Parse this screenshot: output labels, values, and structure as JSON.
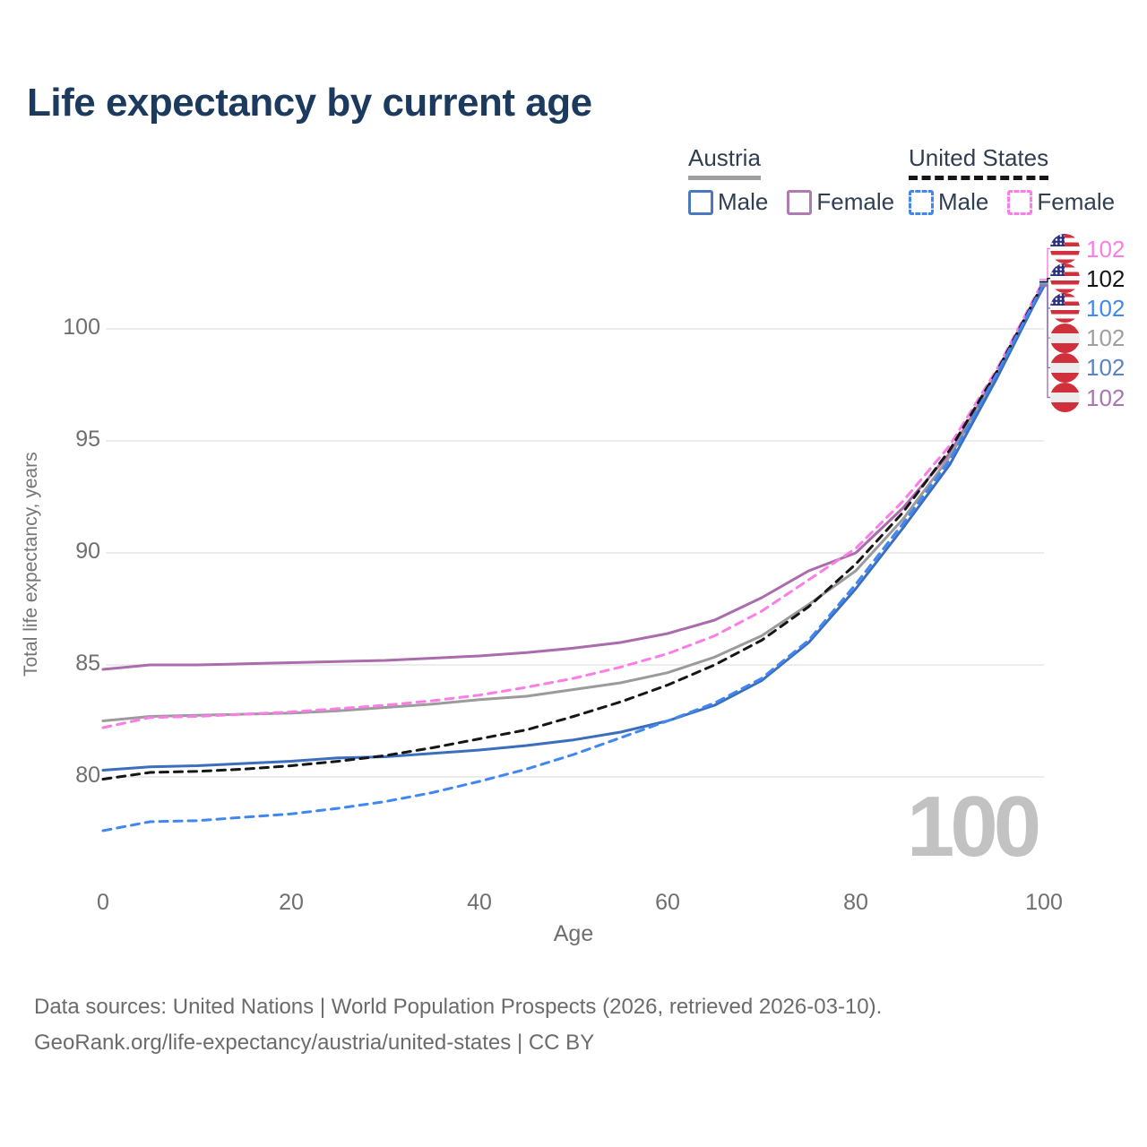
{
  "title": "Life expectancy by current age",
  "colors": {
    "title": "#1b3a5e",
    "legend_text": "#2f3e50",
    "axis_text": "#6f6f6f",
    "grid": "#ececec",
    "watermark": "#c2c2c2",
    "footer": "#6b6b6b"
  },
  "legend": {
    "groups": [
      {
        "label": "Austria",
        "underline_style": "solid",
        "underline_color": "#9e9e9e",
        "items": [
          {
            "label": "Male",
            "color": "#4c79bd",
            "dashed": false
          },
          {
            "label": "Female",
            "color": "#b07ab2",
            "dashed": false
          }
        ]
      },
      {
        "label": "United States",
        "underline_style": "dashed",
        "underline_color": "#161616",
        "items": [
          {
            "label": "Male",
            "color": "#4187f2",
            "dashed": true
          },
          {
            "label": "Female",
            "color": "#fc7ce8",
            "dashed": true
          }
        ]
      }
    ]
  },
  "chart_data": {
    "type": "line",
    "title": "Life expectancy by current age",
    "xlabel": "Age",
    "ylabel": "Total life expectancy, years",
    "x_ticks": [
      0,
      20,
      40,
      60,
      80,
      100
    ],
    "y_ticks": [
      80,
      85,
      90,
      95,
      100
    ],
    "xlim": [
      0,
      100
    ],
    "ylim": [
      77,
      102.5
    ],
    "grid": "horizontal-only",
    "legend_position": "top-right",
    "x": [
      0,
      5,
      10,
      15,
      20,
      25,
      30,
      35,
      40,
      45,
      50,
      55,
      60,
      65,
      70,
      75,
      80,
      85,
      90,
      95,
      100
    ],
    "series": [
      {
        "key": "austria_female",
        "name": "Austria Female",
        "color": "#aa6cac",
        "dashed": false,
        "values": [
          84.8,
          85.0,
          85.0,
          85.05,
          85.1,
          85.15,
          85.2,
          85.3,
          85.4,
          85.55,
          85.75,
          86.0,
          86.4,
          87.0,
          88.0,
          89.2,
          90.0,
          92.0,
          94.45,
          98.0,
          101.9
        ]
      },
      {
        "key": "austria_total",
        "name": "Austria Total",
        "color": "#9b9b9b",
        "dashed": false,
        "values": [
          82.5,
          82.7,
          82.75,
          82.8,
          82.85,
          82.95,
          83.1,
          83.25,
          83.45,
          83.6,
          83.9,
          84.2,
          84.65,
          85.35,
          86.3,
          87.7,
          89.2,
          91.5,
          94.3,
          97.9,
          102.0
        ]
      },
      {
        "key": "austria_male",
        "name": "Austria Male",
        "color": "#3b6fbd",
        "dashed": false,
        "values": [
          80.3,
          80.45,
          80.5,
          80.6,
          80.7,
          80.85,
          80.9,
          81.05,
          81.2,
          81.4,
          81.65,
          82.0,
          82.5,
          83.2,
          84.3,
          86.0,
          88.4,
          91.1,
          93.95,
          97.8,
          101.95
        ]
      },
      {
        "key": "us_female",
        "name": "United States Female",
        "color": "#fb7de5",
        "dashed": true,
        "values": [
          82.2,
          82.65,
          82.7,
          82.8,
          82.9,
          83.05,
          83.2,
          83.4,
          83.65,
          84.0,
          84.4,
          84.9,
          85.5,
          86.3,
          87.4,
          88.8,
          90.2,
          92.3,
          94.8,
          98.2,
          102.2
        ]
      },
      {
        "key": "us_total",
        "name": "United States Total",
        "color": "#161616",
        "dashed": true,
        "values": [
          79.9,
          80.2,
          80.25,
          80.35,
          80.5,
          80.7,
          80.95,
          81.3,
          81.7,
          82.1,
          82.7,
          83.35,
          84.1,
          85.0,
          86.1,
          87.6,
          89.5,
          91.8,
          94.6,
          98.1,
          102.1
        ]
      },
      {
        "key": "us_male",
        "name": "United States Male",
        "color": "#4187f2",
        "dashed": true,
        "values": [
          77.6,
          78.0,
          78.05,
          78.2,
          78.35,
          78.6,
          78.9,
          79.3,
          79.8,
          80.35,
          81.0,
          81.75,
          82.5,
          83.3,
          84.4,
          86.1,
          88.6,
          91.3,
          94.15,
          98.0,
          102.05
        ]
      }
    ],
    "end_labels": [
      {
        "series": 3,
        "flag": "us",
        "value": "102",
        "color": "#fb7de5"
      },
      {
        "series": 4,
        "flag": "us",
        "value": "102",
        "color": "#151515"
      },
      {
        "series": 5,
        "flag": "us",
        "value": "102",
        "color": "#4187f2"
      },
      {
        "series": 1,
        "flag": "austria",
        "value": "102",
        "color": "#9f9f9f"
      },
      {
        "series": 2,
        "flag": "austria",
        "value": "102",
        "color": "#5d82c4"
      },
      {
        "series": 0,
        "flag": "austria",
        "value": "102",
        "color": "#a974b4"
      }
    ]
  },
  "watermark": "100",
  "footer": {
    "line1": "Data sources: United Nations | World Population Prospects (2026, retrieved 2026-03-10).",
    "line2": "GeoRank.org/life-expectancy/austria/united-states | CC BY"
  }
}
